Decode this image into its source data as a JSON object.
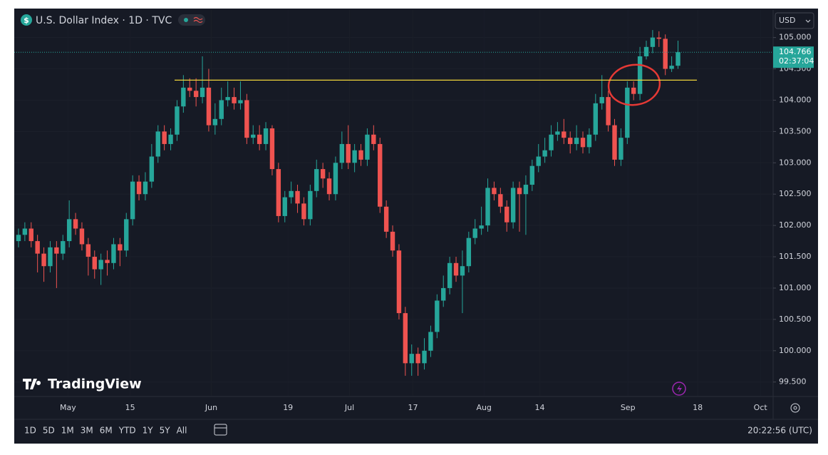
{
  "header": {
    "symbol_icon": "$",
    "title": "U.S. Dollar Index · 1D · TVC",
    "currency": "USD",
    "countdown": "02:37:04"
  },
  "watermark": "TradingView",
  "toolbar": {
    "ranges": [
      "1D",
      "5D",
      "1M",
      "3M",
      "6M",
      "YTD",
      "1Y",
      "5Y",
      "All"
    ],
    "clock": "20:22:56 (UTC)"
  },
  "chart_data": {
    "type": "candlestick",
    "up_color": "#26a69a",
    "down_color": "#ef5350",
    "open": [
      101.75,
      101.85,
      101.95,
      101.75,
      101.55,
      101.35,
      101.65,
      101.55,
      101.75,
      102.1,
      101.95,
      101.7,
      101.5,
      101.3,
      101.45,
      101.4,
      101.7,
      101.6,
      102.1,
      102.7,
      102.5,
      102.7,
      103.1,
      103.5,
      103.3,
      103.45,
      103.9,
      104.2,
      104.15,
      104.05,
      104.2,
      103.6,
      103.7,
      104.0,
      104.05,
      103.95,
      104.0,
      103.4,
      103.45,
      103.3,
      103.55,
      102.9,
      102.15,
      102.45,
      102.55,
      102.35,
      102.1,
      102.55,
      102.9,
      102.75,
      102.5,
      103.0,
      103.3,
      103.0,
      103.2,
      103.05,
      103.45,
      103.3,
      102.3,
      101.9,
      101.6,
      100.6,
      99.8,
      99.95,
      99.8,
      100.0,
      100.3,
      100.8,
      101.0,
      101.4,
      101.2,
      101.35,
      101.8,
      101.95,
      102.0,
      102.6,
      102.5,
      102.3,
      102.05,
      102.6,
      102.5,
      102.65,
      102.95,
      103.1,
      103.2,
      103.45,
      103.5,
      103.4,
      103.3,
      103.4,
      103.25,
      103.45,
      103.95,
      104.05,
      103.6,
      103.05,
      103.4,
      104.2,
      104.1,
      104.7,
      104.85,
      105.0,
      104.98,
      104.5,
      104.55
    ],
    "high": [
      101.95,
      102.05,
      102.05,
      101.85,
      101.65,
      101.75,
      101.75,
      101.85,
      102.4,
      102.2,
      102.05,
      101.8,
      101.6,
      101.55,
      101.6,
      101.8,
      101.8,
      102.2,
      102.8,
      102.8,
      102.85,
      103.3,
      103.6,
      103.6,
      103.55,
      104.0,
      104.4,
      104.35,
      104.35,
      104.7,
      104.5,
      103.95,
      104.2,
      104.3,
      104.2,
      104.3,
      104.1,
      103.6,
      103.6,
      103.65,
      103.6,
      103.0,
      102.55,
      102.7,
      102.65,
      102.45,
      102.65,
      103.05,
      103.0,
      102.85,
      103.1,
      103.5,
      103.6,
      103.3,
      103.3,
      103.55,
      103.6,
      103.4,
      102.4,
      102.0,
      101.7,
      100.7,
      100.1,
      100.05,
      100.2,
      100.4,
      100.9,
      101.2,
      101.5,
      101.5,
      101.6,
      101.9,
      102.1,
      102.3,
      102.75,
      102.7,
      102.6,
      102.4,
      102.7,
      102.7,
      102.8,
      103.05,
      103.3,
      103.4,
      103.6,
      103.65,
      103.7,
      103.5,
      103.6,
      103.5,
      103.55,
      104.1,
      104.4,
      104.15,
      103.7,
      103.55,
      104.3,
      104.3,
      104.85,
      104.95,
      105.12,
      105.1,
      105.05,
      104.7,
      104.95
    ],
    "low": [
      101.65,
      101.75,
      101.65,
      101.25,
      101.1,
      101.25,
      101.0,
      101.45,
      101.65,
      101.85,
      101.6,
      101.2,
      101.15,
      101.05,
      101.2,
      101.3,
      101.35,
      101.5,
      102.0,
      102.4,
      102.4,
      102.6,
      103.0,
      103.2,
      103.2,
      103.35,
      103.8,
      104.05,
      103.9,
      103.95,
      103.5,
      103.45,
      103.6,
      103.9,
      103.85,
      103.85,
      103.3,
      103.3,
      103.2,
      103.2,
      102.8,
      102.05,
      102.05,
      102.35,
      102.2,
      102.0,
      102.0,
      102.45,
      102.6,
      102.4,
      102.4,
      102.9,
      102.9,
      102.85,
      102.95,
      102.95,
      103.2,
      102.2,
      101.8,
      101.5,
      100.5,
      99.6,
      99.6,
      99.6,
      99.7,
      99.9,
      100.2,
      100.7,
      100.9,
      101.1,
      100.6,
      101.25,
      101.7,
      101.85,
      101.9,
      102.4,
      102.2,
      101.9,
      101.95,
      101.9,
      101.85,
      102.55,
      102.85,
      103.0,
      103.1,
      103.35,
      103.3,
      103.15,
      103.2,
      103.15,
      103.15,
      103.35,
      103.85,
      103.5,
      102.95,
      102.95,
      103.3,
      104.0,
      104.0,
      104.65,
      104.75,
      104.85,
      104.4,
      104.45,
      104.5
    ],
    "close": [
      101.85,
      101.95,
      101.75,
      101.55,
      101.35,
      101.65,
      101.55,
      101.75,
      102.1,
      101.95,
      101.7,
      101.5,
      101.3,
      101.45,
      101.4,
      101.7,
      101.6,
      102.1,
      102.7,
      102.5,
      102.7,
      103.1,
      103.5,
      103.3,
      103.45,
      103.9,
      104.2,
      104.15,
      104.05,
      104.2,
      103.6,
      103.7,
      104.0,
      104.05,
      103.95,
      104.0,
      103.4,
      103.45,
      103.3,
      103.55,
      102.9,
      102.15,
      102.45,
      102.55,
      102.35,
      102.1,
      102.55,
      102.9,
      102.75,
      102.5,
      103.0,
      103.3,
      103.0,
      103.2,
      103.05,
      103.45,
      103.3,
      102.3,
      101.9,
      101.6,
      100.6,
      99.8,
      99.95,
      99.8,
      100.0,
      100.3,
      100.8,
      101.0,
      101.4,
      101.2,
      101.35,
      101.8,
      101.95,
      102.0,
      102.6,
      102.5,
      102.3,
      102.05,
      102.6,
      102.5,
      102.65,
      102.95,
      103.1,
      103.2,
      103.45,
      103.5,
      103.4,
      103.3,
      103.4,
      103.25,
      103.45,
      103.95,
      104.05,
      103.6,
      103.05,
      103.4,
      104.2,
      104.1,
      104.7,
      104.85,
      105.0,
      104.98,
      104.5,
      104.55,
      104.766
    ],
    "hline": {
      "value": 104.32,
      "color": "#f0d43a"
    },
    "xlim": [
      -0.67,
      119.0
    ],
    "xticks": [
      {
        "value": 7.8,
        "label": "May"
      },
      {
        "value": 17.6,
        "label": "15"
      },
      {
        "value": 30.4,
        "label": "Jun"
      },
      {
        "value": 42.5,
        "label": "19"
      },
      {
        "value": 52.2,
        "label": "Jul"
      },
      {
        "value": 62.2,
        "label": "17"
      },
      {
        "value": 73.4,
        "label": "Aug"
      },
      {
        "value": 82.2,
        "label": "14"
      },
      {
        "value": 96.1,
        "label": "Sep"
      },
      {
        "value": 107.1,
        "label": "18"
      },
      {
        "value": 117.0,
        "label": "Oct"
      }
    ],
    "ylim": [
      99.28,
      105.44
    ],
    "yticks": [
      {
        "value": 99.5,
        "label": "99.500"
      },
      {
        "value": 100,
        "label": "100.000"
      },
      {
        "value": 100.5,
        "label": "100.500"
      },
      {
        "value": 101,
        "label": "101.000"
      },
      {
        "value": 101.5,
        "label": "101.500"
      },
      {
        "value": 102,
        "label": "102.000"
      },
      {
        "value": 102.5,
        "label": "102.500"
      },
      {
        "value": 103,
        "label": "103.000"
      },
      {
        "value": 103.5,
        "label": "103.500"
      },
      {
        "value": 104,
        "label": "104.000"
      },
      {
        "value": 104.5,
        "label": "104.500"
      },
      {
        "value": 105,
        "label": "105.000"
      }
    ],
    "grid": true
  }
}
